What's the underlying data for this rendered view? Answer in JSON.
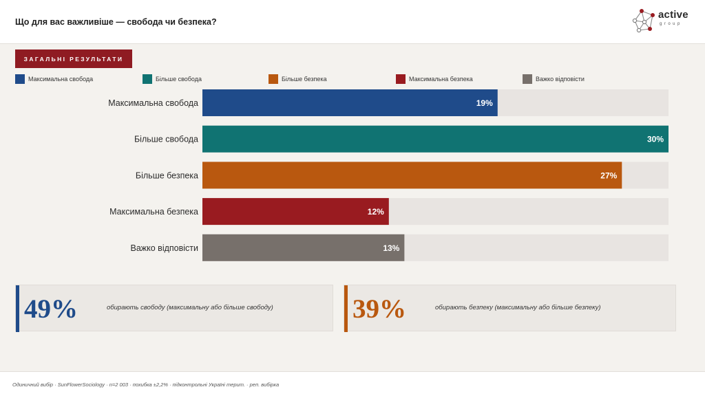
{
  "header": {
    "title": "Що для вас важливіше — свобода чи безпека?",
    "logo": {
      "word": "active",
      "sub": "group"
    }
  },
  "section_tag": "ЗАГАЛЬНІ РЕЗУЛЬТАТИ",
  "colors": {
    "max_freedom": "#1f4b8a",
    "more_freedom": "#107372",
    "more_security": "#b9580f",
    "max_security": "#991b20",
    "hard_to_say": "#77706b",
    "track": "#e8e4e1",
    "tag": "#8f1b22"
  },
  "chart_data": {
    "type": "bar",
    "orientation": "horizontal",
    "categories": [
      "Максимальна свобода",
      "Більше свобода",
      "Більше безпека",
      "Максимальна безпека",
      "Важко відповісти"
    ],
    "values": [
      19,
      30,
      27,
      12,
      13
    ],
    "value_labels": [
      "19%",
      "30%",
      "27%",
      "12%",
      "13%"
    ],
    "xlim": [
      0,
      30
    ],
    "legend": [
      "Максимальна свобода",
      "Більше свобода",
      "Більше безпека",
      "Максимальна безпека",
      "Важко відповісти"
    ],
    "legend_position": "top",
    "grid": false
  },
  "summary": [
    {
      "value": "49%",
      "text": "обирають свободу (максимальну або більше свободу)",
      "color": "#1f4b8a"
    },
    {
      "value": "39%",
      "text": "обирають безпеку (максимальну або більше безпеку)",
      "color": "#b9580f"
    }
  ],
  "footer": "Одиничний вибір · SunFlowerSociology · n=2 003 · похибка ±2,2% · підконтрольні Україні терит. · реп. вибірка"
}
